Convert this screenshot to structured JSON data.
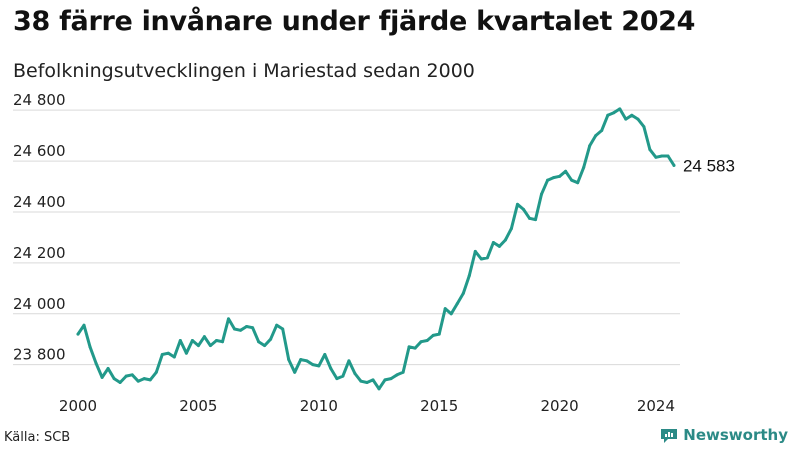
{
  "title": "38 färre invånare under fjärde kvartalet 2024",
  "subtitle": "Befolkningsutvecklingen i Mariestad sedan 2000",
  "source": "Källa: SCB",
  "brand": {
    "name": "Newsworthy",
    "icon": "newsworthy-logo-icon",
    "color": "#2b8a86"
  },
  "chart_data": {
    "type": "line",
    "line_color": "#22998a",
    "grid": true,
    "ylim": [
      23720,
      24840
    ],
    "xlim": [
      2000,
      2025
    ],
    "yticks": [
      {
        "value": 23800,
        "label": "23 800"
      },
      {
        "value": 24000,
        "label": "24 000"
      },
      {
        "value": 24200,
        "label": "24 200"
      },
      {
        "value": 24400,
        "label": "24 400"
      },
      {
        "value": 24600,
        "label": "24 600"
      },
      {
        "value": 24800,
        "label": "24 800"
      }
    ],
    "xticks": [
      {
        "value": 2000,
        "label": "2000"
      },
      {
        "value": 2005,
        "label": "2005"
      },
      {
        "value": 2010,
        "label": "2010"
      },
      {
        "value": 2015,
        "label": "2015"
      },
      {
        "value": 2020,
        "label": "2020"
      },
      {
        "value": 2024,
        "label": "2024"
      }
    ],
    "end_label": "24 583",
    "series": [
      {
        "x": [
          2000.0,
          2000.25,
          2000.5,
          2000.75,
          2001.0,
          2001.25,
          2001.5,
          2001.75,
          2002.0,
          2002.25,
          2002.5,
          2002.75,
          2003.0,
          2003.25,
          2003.5,
          2003.75,
          2004.0,
          2004.25,
          2004.5,
          2004.75,
          2005.0,
          2005.25,
          2005.5,
          2005.75,
          2006.0,
          2006.25,
          2006.5,
          2006.75,
          2007.0,
          2007.25,
          2007.5,
          2007.75,
          2008.0,
          2008.25,
          2008.5,
          2008.75,
          2009.0,
          2009.25,
          2009.5,
          2009.75,
          2010.0,
          2010.25,
          2010.5,
          2010.75,
          2011.0,
          2011.25,
          2011.5,
          2011.75,
          2012.0,
          2012.25,
          2012.5,
          2012.75,
          2013.0,
          2013.25,
          2013.5,
          2013.75,
          2014.0,
          2014.25,
          2014.5,
          2014.75,
          2015.0,
          2015.25,
          2015.5,
          2015.75,
          2016.0,
          2016.25,
          2016.5,
          2016.75,
          2017.0,
          2017.25,
          2017.5,
          2017.75,
          2018.0,
          2018.25,
          2018.5,
          2018.75,
          2019.0,
          2019.25,
          2019.5,
          2019.75,
          2020.0,
          2020.25,
          2020.5,
          2020.75,
          2021.0,
          2021.25,
          2021.5,
          2021.75,
          2022.0,
          2022.25,
          2022.5,
          2022.75,
          2023.0,
          2023.25,
          2023.5,
          2023.75,
          2024.0,
          2024.25,
          2024.5,
          2024.75
        ],
        "values": [
          23920,
          23955,
          23870,
          23805,
          23750,
          23785,
          23745,
          23730,
          23755,
          23760,
          23735,
          23745,
          23740,
          23770,
          23840,
          23845,
          23830,
          23895,
          23845,
          23895,
          23875,
          23910,
          23875,
          23895,
          23890,
          23980,
          23940,
          23935,
          23950,
          23945,
          23890,
          23875,
          23900,
          23955,
          23940,
          23820,
          23770,
          23820,
          23815,
          23800,
          23795,
          23840,
          23785,
          23745,
          23755,
          23815,
          23765,
          23735,
          23730,
          23740,
          23705,
          23740,
          23745,
          23760,
          23770,
          23870,
          23865,
          23890,
          23895,
          23915,
          23920,
          24020,
          24000,
          24040,
          24080,
          24150,
          24245,
          24215,
          24220,
          24280,
          24265,
          24290,
          24335,
          24430,
          24410,
          24375,
          24370,
          24470,
          24525,
          24535,
          24540,
          24560,
          24525,
          24515,
          24575,
          24660,
          24700,
          24720,
          24780,
          24790,
          24805,
          24765,
          24780,
          24765,
          24735,
          24645,
          24615,
          24620,
          24620,
          24583
        ]
      }
    ]
  }
}
